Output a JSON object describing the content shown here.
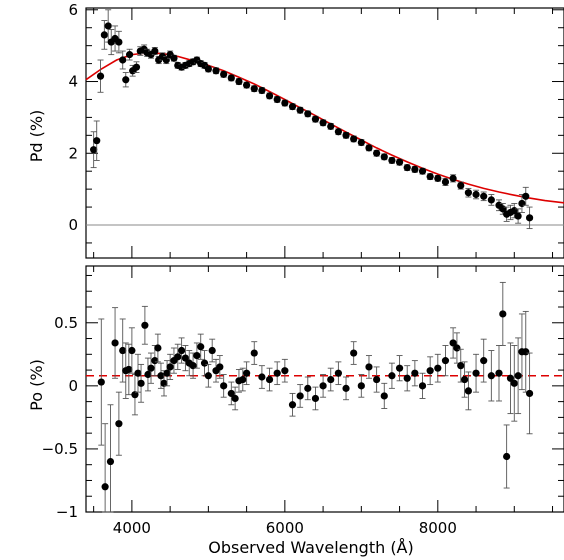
{
  "chart_data": [
    {
      "type": "scatter",
      "panel": "top",
      "xlabel": "",
      "ylabel": "Pd (%)",
      "xlim": [
        3400,
        9650
      ],
      "ylim": [
        -0.92,
        6.05
      ],
      "xticks": [
        4000,
        6000,
        8000
      ],
      "yticks": [
        0,
        2,
        4,
        6
      ],
      "reference_line": {
        "y": 0,
        "color": "#888888"
      },
      "model_curve": {
        "color": "#dd0000",
        "style": "solid",
        "x": [
          3400,
          3600,
          3800,
          4000,
          4200,
          4400,
          4600,
          4800,
          5000,
          5200,
          5400,
          5600,
          5800,
          6000,
          6200,
          6400,
          6600,
          6800,
          7000,
          7200,
          7400,
          7600,
          7800,
          8000,
          8200,
          8400,
          8600,
          8800,
          9000,
          9200,
          9400,
          9650
        ],
        "y": [
          4.05,
          4.35,
          4.6,
          4.75,
          4.8,
          4.78,
          4.7,
          4.58,
          4.45,
          4.3,
          4.12,
          3.93,
          3.72,
          3.5,
          3.27,
          3.05,
          2.82,
          2.59,
          2.37,
          2.15,
          1.95,
          1.76,
          1.58,
          1.42,
          1.27,
          1.14,
          1.02,
          0.92,
          0.83,
          0.75,
          0.68,
          0.62
        ]
      },
      "series": [
        {
          "color": "#000000",
          "x": [
            3500,
            3540,
            3590,
            3640,
            3690,
            3730,
            3780,
            3830,
            3880,
            3920,
            3970,
            4010,
            4060,
            4110,
            4160,
            4200,
            4250,
            4300,
            4350,
            4400,
            4450,
            4500,
            4550,
            4600,
            4650,
            4700,
            4750,
            4800,
            4850,
            4900,
            4950,
            5000,
            5100,
            5200,
            5300,
            5400,
            5500,
            5600,
            5700,
            5800,
            5900,
            6000,
            6100,
            6200,
            6300,
            6400,
            6500,
            6600,
            6700,
            6800,
            6900,
            7000,
            7100,
            7200,
            7300,
            7400,
            7500,
            7600,
            7700,
            7800,
            7900,
            8000,
            8100,
            8200,
            8300,
            8400,
            8500,
            8600,
            8700,
            8800,
            8850,
            8900,
            8950,
            9000,
            9050,
            9100,
            9150,
            9200
          ],
          "y": [
            2.1,
            2.35,
            4.15,
            5.3,
            5.55,
            5.1,
            5.2,
            5.1,
            4.6,
            4.05,
            4.75,
            4.3,
            4.4,
            4.85,
            4.9,
            4.8,
            4.75,
            4.85,
            4.6,
            4.7,
            4.6,
            4.75,
            4.65,
            4.45,
            4.4,
            4.45,
            4.5,
            4.55,
            4.6,
            4.5,
            4.45,
            4.35,
            4.3,
            4.2,
            4.1,
            4.0,
            3.9,
            3.8,
            3.75,
            3.6,
            3.5,
            3.4,
            3.3,
            3.2,
            3.1,
            2.95,
            2.85,
            2.75,
            2.6,
            2.5,
            2.4,
            2.3,
            2.15,
            2.0,
            1.9,
            1.8,
            1.75,
            1.6,
            1.55,
            1.5,
            1.35,
            1.3,
            1.2,
            1.3,
            1.1,
            0.9,
            0.85,
            0.8,
            0.7,
            0.55,
            0.45,
            0.3,
            0.35,
            0.4,
            0.25,
            0.6,
            0.8,
            0.2
          ],
          "err": [
            0.5,
            0.55,
            0.45,
            0.4,
            0.45,
            0.35,
            0.35,
            0.3,
            0.25,
            0.2,
            0.15,
            0.15,
            0.15,
            0.12,
            0.12,
            0.1,
            0.1,
            0.1,
            0.1,
            0.1,
            0.1,
            0.1,
            0.08,
            0.08,
            0.08,
            0.08,
            0.08,
            0.08,
            0.08,
            0.08,
            0.08,
            0.08,
            0.08,
            0.08,
            0.08,
            0.08,
            0.08,
            0.08,
            0.08,
            0.08,
            0.08,
            0.08,
            0.08,
            0.08,
            0.08,
            0.08,
            0.08,
            0.08,
            0.08,
            0.08,
            0.08,
            0.08,
            0.08,
            0.08,
            0.08,
            0.08,
            0.08,
            0.08,
            0.08,
            0.08,
            0.08,
            0.08,
            0.1,
            0.1,
            0.1,
            0.12,
            0.12,
            0.12,
            0.15,
            0.15,
            0.15,
            0.2,
            0.2,
            0.2,
            0.2,
            0.25,
            0.25,
            0.3
          ]
        }
      ]
    },
    {
      "type": "scatter",
      "panel": "bottom",
      "xlabel": "Observed Wavelength (Å)",
      "ylabel": "Po (%)",
      "xlim": [
        3400,
        9650
      ],
      "ylim": [
        -1.0,
        0.95
      ],
      "xticks": [
        4000,
        6000,
        8000
      ],
      "yticks": [
        -1,
        -0.5,
        0,
        0.5
      ],
      "ytick_labels": [
        "−1",
        "−0.5",
        "0",
        "0.5"
      ],
      "reference_line": {
        "y": 0.08,
        "color": "#dd0000",
        "style": "dashed"
      },
      "series": [
        {
          "color": "#000000",
          "x": [
            3600,
            3650,
            3720,
            3780,
            3830,
            3880,
            3920,
            3960,
            4000,
            4040,
            4080,
            4120,
            4170,
            4210,
            4250,
            4300,
            4340,
            4380,
            4420,
            4460,
            4500,
            4550,
            4600,
            4650,
            4700,
            4750,
            4800,
            4850,
            4900,
            4950,
            5000,
            5050,
            5100,
            5150,
            5200,
            5300,
            5350,
            5400,
            5450,
            5500,
            5600,
            5700,
            5800,
            5900,
            6000,
            6100,
            6200,
            6300,
            6400,
            6500,
            6600,
            6700,
            6800,
            6900,
            7000,
            7100,
            7200,
            7300,
            7400,
            7500,
            7600,
            7700,
            7800,
            7900,
            8000,
            8100,
            8200,
            8250,
            8300,
            8350,
            8400,
            8500,
            8600,
            8700,
            8800,
            8850,
            8900,
            8950,
            9000,
            9050,
            9100,
            9150,
            9200
          ],
          "y": [
            0.03,
            -0.8,
            -0.6,
            0.34,
            -0.3,
            0.28,
            0.12,
            0.13,
            0.28,
            -0.07,
            0.1,
            0.02,
            0.48,
            0.09,
            0.14,
            0.2,
            0.3,
            0.08,
            0.02,
            0.1,
            0.15,
            0.2,
            0.23,
            0.28,
            0.22,
            0.18,
            0.16,
            0.24,
            0.31,
            0.18,
            0.08,
            0.28,
            0.12,
            0.15,
            0.0,
            -0.06,
            -0.1,
            0.04,
            0.05,
            0.1,
            0.26,
            0.07,
            0.05,
            0.1,
            0.12,
            -0.15,
            -0.08,
            -0.02,
            -0.1,
            0.0,
            0.05,
            0.1,
            -0.02,
            0.26,
            0.0,
            0.15,
            0.05,
            -0.08,
            0.08,
            0.14,
            0.06,
            0.1,
            0.0,
            0.12,
            0.14,
            0.2,
            0.34,
            0.3,
            0.16,
            0.05,
            -0.04,
            0.1,
            0.2,
            0.08,
            0.1,
            0.57,
            -0.56,
            0.06,
            0.02,
            0.08,
            0.27,
            0.27,
            -0.06
          ],
          "err": [
            0.5,
            0.5,
            0.45,
            0.28,
            0.25,
            0.25,
            0.22,
            0.2,
            0.18,
            0.16,
            0.15,
            0.15,
            0.15,
            0.13,
            0.12,
            0.12,
            0.11,
            0.1,
            0.1,
            0.1,
            0.1,
            0.1,
            0.1,
            0.1,
            0.1,
            0.1,
            0.1,
            0.1,
            0.1,
            0.1,
            0.09,
            0.09,
            0.09,
            0.09,
            0.09,
            0.09,
            0.09,
            0.09,
            0.09,
            0.09,
            0.09,
            0.09,
            0.09,
            0.09,
            0.09,
            0.09,
            0.09,
            0.09,
            0.09,
            0.09,
            0.09,
            0.09,
            0.09,
            0.09,
            0.09,
            0.09,
            0.1,
            0.1,
            0.1,
            0.1,
            0.1,
            0.1,
            0.1,
            0.11,
            0.11,
            0.12,
            0.12,
            0.12,
            0.13,
            0.14,
            0.15,
            0.15,
            0.17,
            0.2,
            0.22,
            0.25,
            0.25,
            0.28,
            0.3,
            0.3,
            0.3,
            0.32,
            0.32
          ]
        }
      ]
    }
  ]
}
